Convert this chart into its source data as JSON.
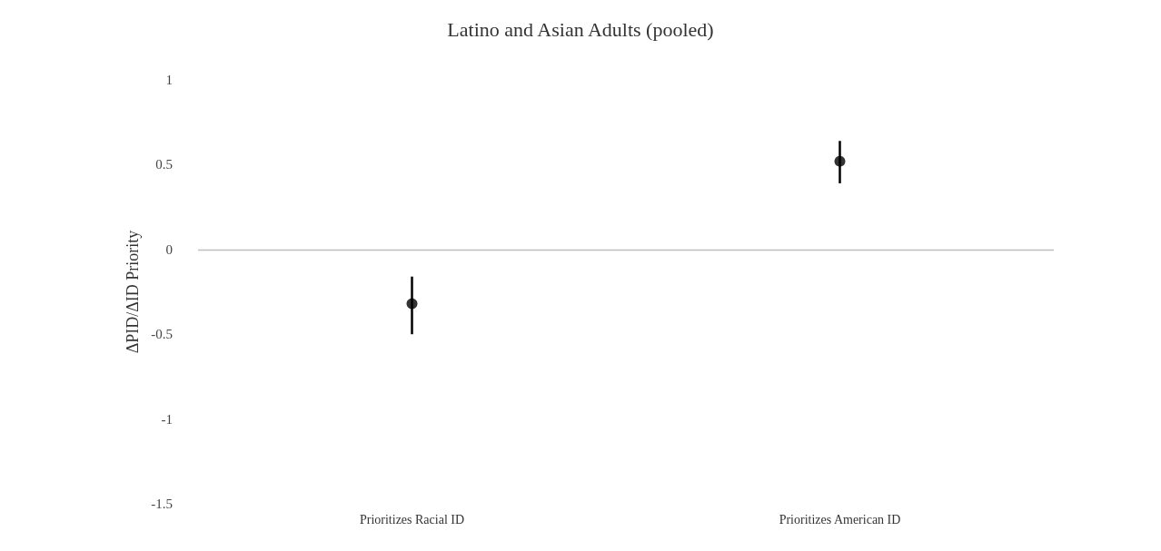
{
  "chart_data": {
    "type": "scatter",
    "title": "Latino and Asian Adults (pooled)",
    "ylabel": "ΔPID/ΔID Priority",
    "categories": [
      "Prioritizes Racial ID",
      "Prioritizes American ID"
    ],
    "series": [
      {
        "color": "#000000",
        "values": [
          -0.32,
          0.52
        ],
        "errors": [
          [
            -0.5,
            -0.16
          ],
          [
            0.39,
            0.64
          ]
        ]
      }
    ],
    "ylim": [
      -1.5,
      1
    ],
    "yticks": [
      -1.5,
      -1,
      -0.5,
      0,
      0.5,
      1
    ],
    "ref_lines": [
      {
        "axis": "y",
        "value": 0,
        "color": "#bfbfbf"
      }
    ],
    "grid": false,
    "marker": "circle"
  }
}
